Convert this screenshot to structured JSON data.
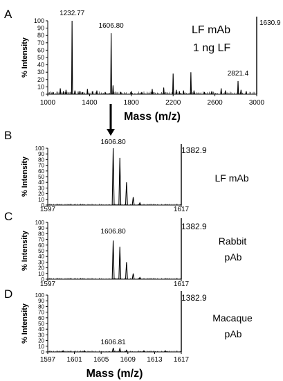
{
  "chart_data": [
    {
      "type": "line",
      "panel": "A",
      "xlabel": "Mass (m/z)",
      "ylabel": "% Intensity",
      "xlim": [
        1000,
        3000
      ],
      "ylim": [
        0,
        100
      ],
      "x_ticks": [
        "1000",
        "1400",
        "1800",
        "2200",
        "2600",
        "3000"
      ],
      "y_ticks": [
        "0",
        "10",
        "20",
        "30",
        "40",
        "50",
        "60",
        "70",
        "80",
        "90",
        "100"
      ],
      "max_intensity_label": "1630.9",
      "annotations": [
        "LF mAb",
        "1 ng LF"
      ],
      "peak_labels": [
        "1232.77",
        "1606.80",
        "2821.4"
      ],
      "peaks": {
        "x": [
          1050,
          1120,
          1150,
          1175,
          1232.77,
          1260,
          1300,
          1330,
          1380,
          1430,
          1470,
          1550,
          1606.8,
          1625,
          1700,
          1800,
          1900,
          2000,
          2110,
          2200,
          2230,
          2260,
          2300,
          2370,
          2400,
          2500,
          2570,
          2660,
          2700,
          2821.4,
          2850,
          2900
        ],
        "y": [
          3,
          8,
          4,
          6,
          100,
          5,
          4,
          3,
          7,
          4,
          5,
          3,
          83,
          12,
          3,
          4,
          3,
          7,
          9,
          28,
          6,
          4,
          5,
          30,
          5,
          3,
          4,
          8,
          5,
          18,
          6,
          4
        ]
      }
    },
    {
      "type": "line",
      "panel": "B",
      "ylabel": "% Intensity",
      "xlim": [
        1597,
        1617
      ],
      "ylim": [
        0,
        100
      ],
      "x_ticks": [
        "1597",
        "1617"
      ],
      "y_ticks": [
        "0",
        "10",
        "20",
        "30",
        "40",
        "50",
        "60",
        "70",
        "80",
        "90",
        "100"
      ],
      "max_intensity_label": "1382.9",
      "annotations": [
        "LF mAb"
      ],
      "peak_labels": [
        "1606.80"
      ],
      "peaks": {
        "x": [
          1606.8,
          1607.8,
          1608.8,
          1609.8,
          1610.8
        ],
        "y": [
          100,
          83,
          40,
          14,
          4
        ]
      }
    },
    {
      "type": "line",
      "panel": "C",
      "ylabel": "% Intensity",
      "xlim": [
        1597,
        1617
      ],
      "ylim": [
        0,
        100
      ],
      "x_ticks": [
        "1597",
        "1617"
      ],
      "y_ticks": [
        "0",
        "10",
        "20",
        "30",
        "40",
        "50",
        "60",
        "70",
        "80",
        "90",
        "100"
      ],
      "max_intensity_label": "1382.9",
      "annotations": [
        "Rabbit",
        "pAb"
      ],
      "peak_labels": [
        "1606.80"
      ],
      "peaks": {
        "x": [
          1606.8,
          1607.8,
          1608.8,
          1609.8,
          1610.8
        ],
        "y": [
          68,
          57,
          30,
          10,
          3
        ]
      }
    },
    {
      "type": "line",
      "panel": "D",
      "xlabel": "Mass (m/z)",
      "ylabel": "% Intensity",
      "xlim": [
        1597,
        1617
      ],
      "ylim": [
        0,
        100
      ],
      "x_ticks": [
        "1597",
        "1601",
        "1605",
        "1609",
        "1613",
        "1617"
      ],
      "y_ticks": [
        "0",
        "10",
        "20",
        "30",
        "40",
        "50",
        "60",
        "70",
        "80",
        "90",
        "100"
      ],
      "max_intensity_label": "1382.9",
      "annotations": [
        "Macaque",
        "pAb"
      ],
      "peak_labels": [
        "1606.81"
      ],
      "peaks": {
        "x": [
          1599.3,
          1602.5,
          1606.81,
          1607.8,
          1608.8,
          1611.4,
          1614.6
        ],
        "y": [
          2,
          2,
          7,
          6,
          3,
          2,
          2
        ]
      }
    }
  ],
  "panel_letters": [
    "A",
    "B",
    "C",
    "D"
  ]
}
